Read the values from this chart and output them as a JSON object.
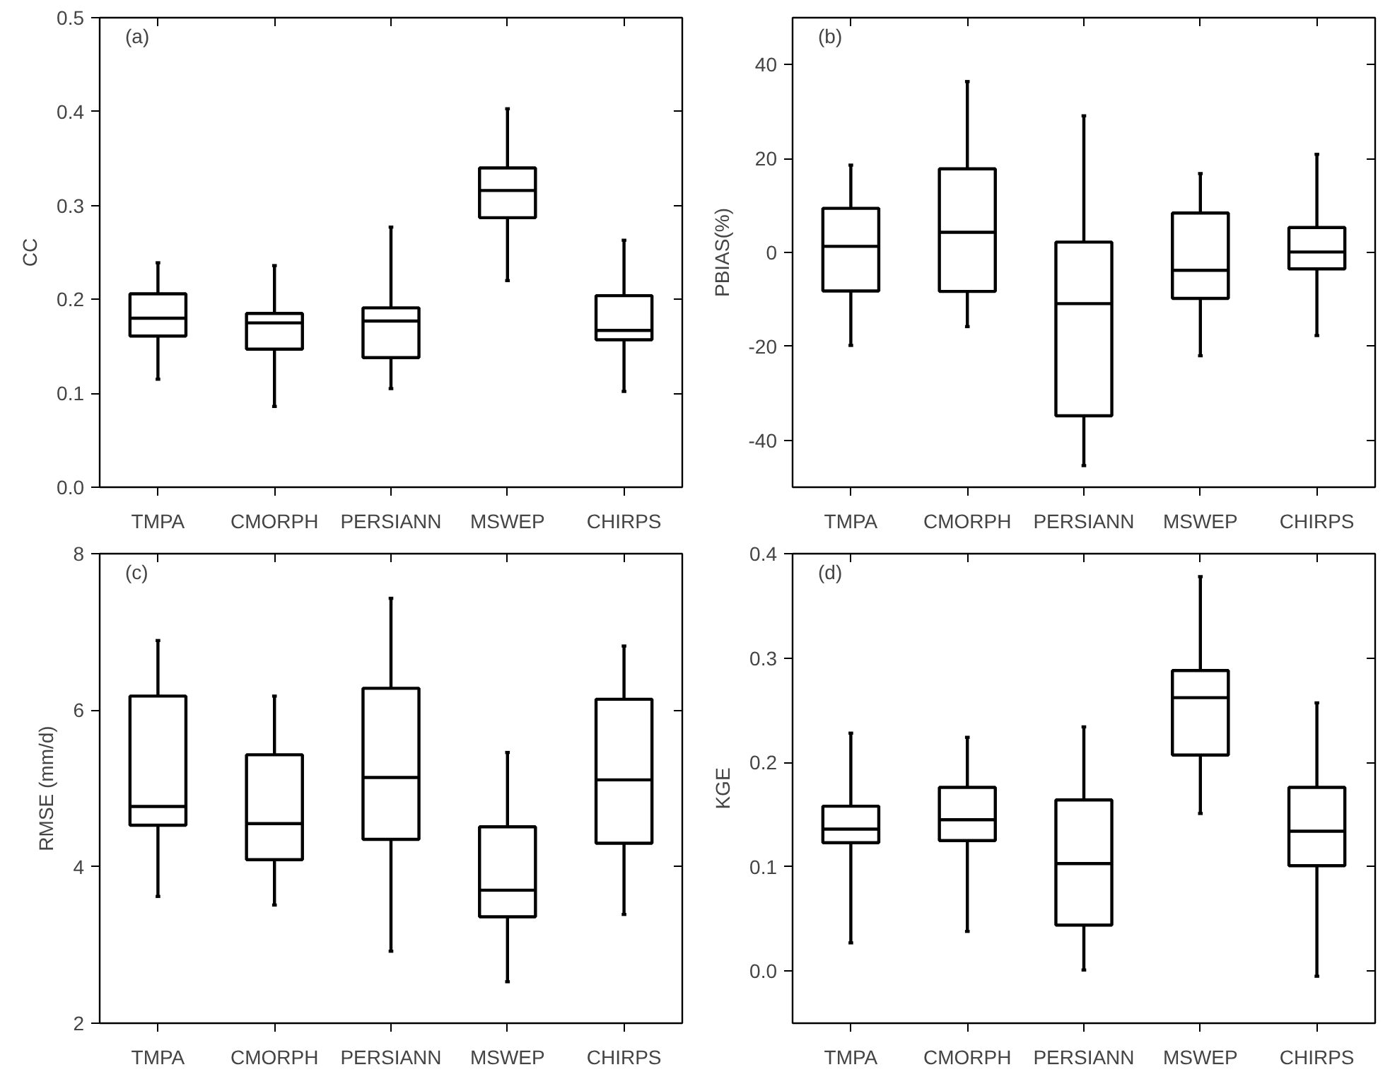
{
  "chart_data": [
    {
      "type": "box",
      "ylabel": "CC",
      "annotations": [
        "(a)"
      ],
      "categories": [
        "TMPA",
        "CMORPH",
        "PERSIANN",
        "MSWEP",
        "CHIRPS"
      ],
      "ylim": [
        0,
        0.5
      ],
      "yticks": [
        {
          "value": 0,
          "label": "0.0"
        },
        0.1,
        0.2,
        0.3,
        0.4,
        0.5
      ],
      "grid": false,
      "color": "#000000",
      "boxes": [
        {
          "low": 0.115,
          "q1": 0.161,
          "median": 0.18,
          "q3": 0.206,
          "high": 0.239
        },
        {
          "low": 0.086,
          "q1": 0.147,
          "median": 0.175,
          "q3": 0.185,
          "high": 0.236
        },
        {
          "low": 0.105,
          "q1": 0.138,
          "median": 0.177,
          "q3": 0.191,
          "high": 0.277
        },
        {
          "low": 0.22,
          "q1": 0.287,
          "median": 0.316,
          "q3": 0.34,
          "high": 0.403
        },
        {
          "low": 0.102,
          "q1": 0.157,
          "median": 0.167,
          "q3": 0.204,
          "high": 0.263
        }
      ]
    },
    {
      "type": "box",
      "ylabel": "PBIAS(%)",
      "annotations": [
        "(b)"
      ],
      "categories": [
        "TMPA",
        "CMORPH",
        "PERSIANN",
        "MSWEP",
        "CHIRPS"
      ],
      "ylim": [
        -50,
        50
      ],
      "yticks": [
        -40,
        -20,
        0,
        20,
        40
      ],
      "grid": false,
      "color": "#000000",
      "boxes": [
        {
          "low": -19.8,
          "q1": -8.2,
          "median": 1.3,
          "q3": 9.4,
          "high": 18.6
        },
        {
          "low": -15.8,
          "q1": -8.3,
          "median": 4.3,
          "q3": 17.8,
          "high": 36.4
        },
        {
          "low": -45.4,
          "q1": -34.8,
          "median": -10.9,
          "q3": 2.2,
          "high": 29.1
        },
        {
          "low": -22.0,
          "q1": -9.8,
          "median": -3.8,
          "q3": 8.4,
          "high": 16.8
        },
        {
          "low": -17.7,
          "q1": -3.5,
          "median": 0.1,
          "q3": 5.3,
          "high": 20.9
        }
      ]
    },
    {
      "type": "box",
      "ylabel": "RMSE (mm/d)",
      "annotations": [
        "(c)"
      ],
      "categories": [
        "TMPA",
        "CMORPH",
        "PERSIANN",
        "MSWEP",
        "CHIRPS"
      ],
      "ylim": [
        2,
        8
      ],
      "yticks": [
        2,
        4,
        6,
        8
      ],
      "grid": false,
      "color": "#000000",
      "boxes": [
        {
          "low": 3.62,
          "q1": 4.53,
          "median": 4.77,
          "q3": 6.18,
          "high": 6.89
        },
        {
          "low": 3.51,
          "q1": 4.09,
          "median": 4.55,
          "q3": 5.43,
          "high": 6.18
        },
        {
          "low": 2.92,
          "q1": 4.35,
          "median": 5.14,
          "q3": 6.28,
          "high": 7.43
        },
        {
          "low": 2.53,
          "q1": 3.36,
          "median": 3.7,
          "q3": 4.51,
          "high": 5.46
        },
        {
          "low": 3.39,
          "q1": 4.3,
          "median": 5.11,
          "q3": 6.14,
          "high": 6.82
        }
      ]
    },
    {
      "type": "box",
      "ylabel": "KGE",
      "annotations": [
        "(d)"
      ],
      "categories": [
        "TMPA",
        "CMORPH",
        "PERSIANN",
        "MSWEP",
        "CHIRPS"
      ],
      "ylim": [
        -0.05,
        0.4
      ],
      "yticks": [
        {
          "value": 0,
          "label": "0.0"
        },
        0.1,
        0.2,
        0.3,
        0.4
      ],
      "grid": false,
      "color": "#000000",
      "boxes": [
        {
          "low": 0.027,
          "q1": 0.123,
          "median": 0.136,
          "q3": 0.158,
          "high": 0.228
        },
        {
          "low": 0.038,
          "q1": 0.125,
          "median": 0.145,
          "q3": 0.176,
          "high": 0.224
        },
        {
          "low": 0.001,
          "q1": 0.044,
          "median": 0.103,
          "q3": 0.164,
          "high": 0.234
        },
        {
          "low": 0.151,
          "q1": 0.207,
          "median": 0.262,
          "q3": 0.288,
          "high": 0.378
        },
        {
          "low": -0.005,
          "q1": 0.101,
          "median": 0.134,
          "q3": 0.176,
          "high": 0.257
        }
      ]
    }
  ]
}
